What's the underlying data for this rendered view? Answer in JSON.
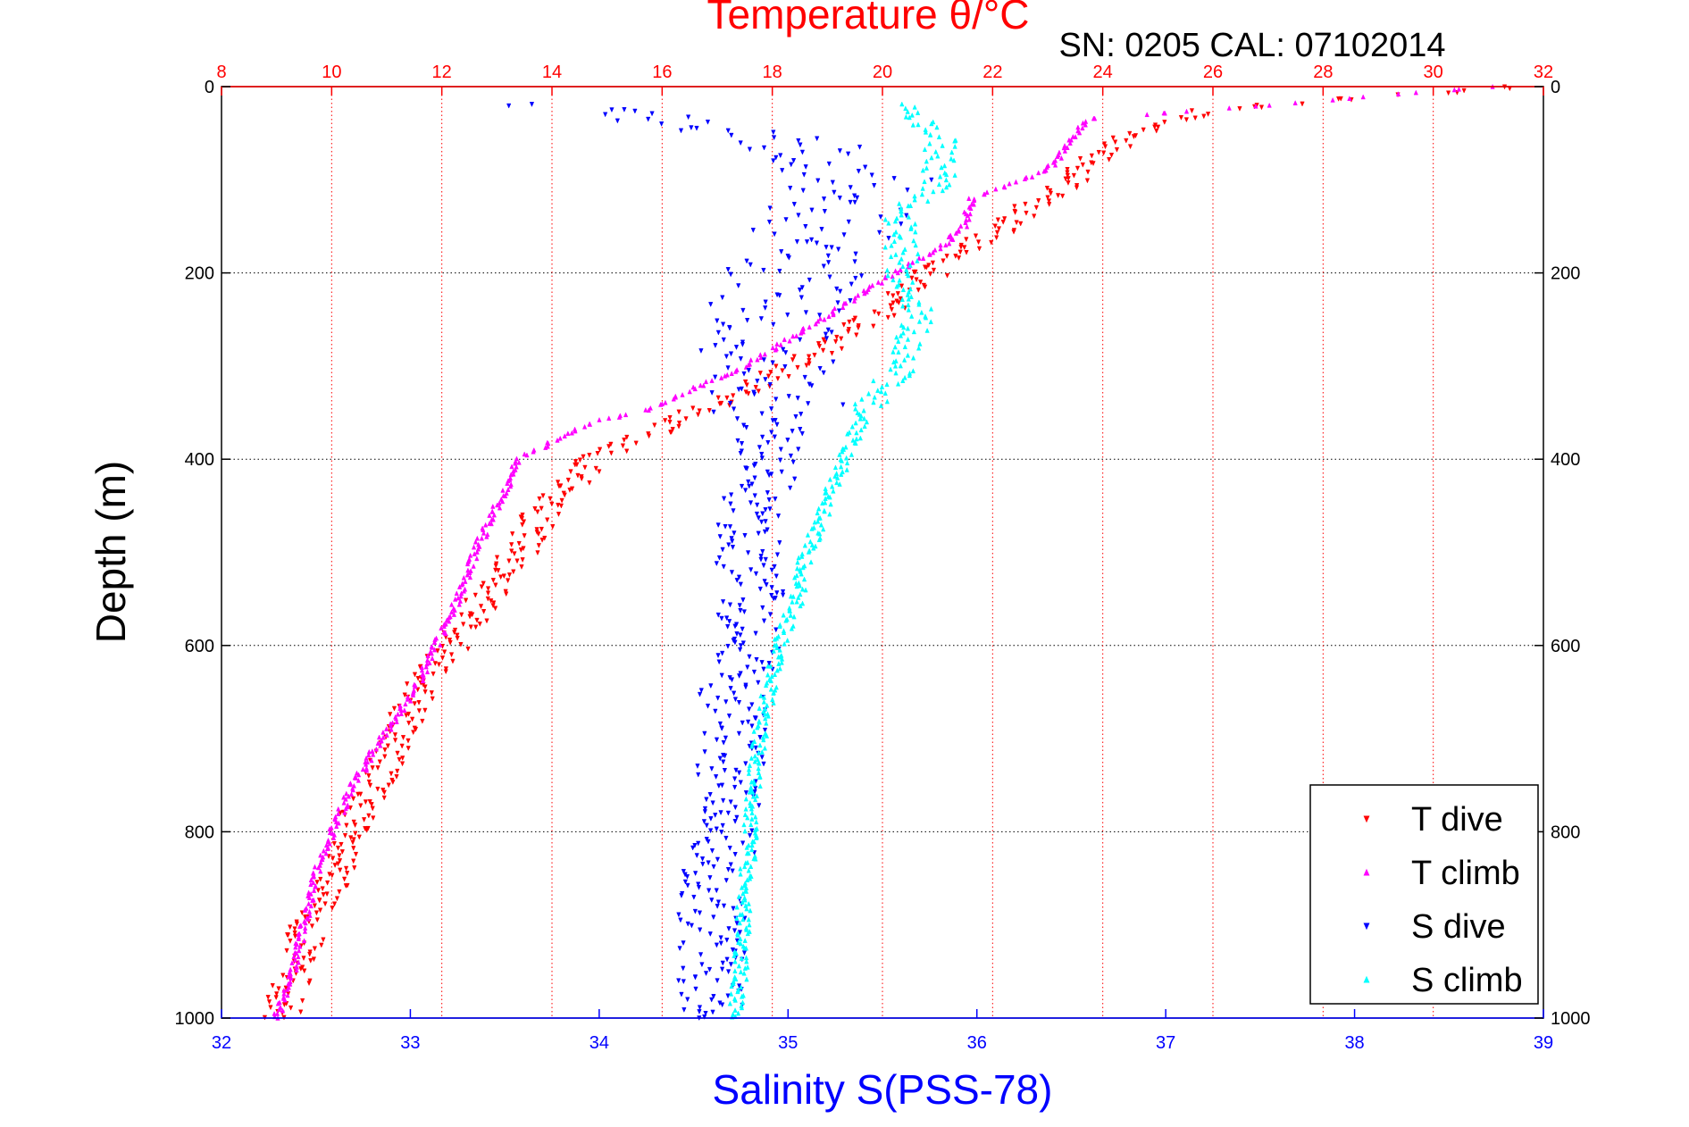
{
  "chart_data": {
    "type": "scatter",
    "title": "Temperature θ/°C",
    "annotation": "SN: 0205  CAL: 07102014",
    "ylabel": "Depth (m)",
    "xlabel_bottom": "Salinity S(PSS-78)",
    "ylim": [
      0,
      1000
    ],
    "y_inverted": true,
    "y_ticks": [
      0,
      200,
      400,
      600,
      800,
      1000
    ],
    "x_bottom_lim": [
      32,
      39
    ],
    "x_bottom_ticks": [
      32,
      33,
      34,
      35,
      36,
      37,
      38,
      39
    ],
    "x_top_lim": [
      8,
      32
    ],
    "x_top_ticks": [
      8,
      10,
      12,
      14,
      16,
      18,
      20,
      22,
      24,
      26,
      28,
      30,
      32
    ],
    "grid": true,
    "legend_position": "bottom-right",
    "colors": {
      "temperature_axis": "#ff0000",
      "salinity_axis": "#0000ff",
      "t_dive": "#ff0000",
      "t_climb": "#ff00ff",
      "s_dive": "#0000ff",
      "s_climb": "#00ffff",
      "grid": "#000000",
      "temp_grid": "#ff0000"
    },
    "series": [
      {
        "name": "T dive",
        "axis": "temperature",
        "marker": "triangle-down",
        "profile": [
          [
            0,
            31.5
          ],
          [
            25,
            26.0
          ],
          [
            50,
            24.6
          ],
          [
            100,
            23.4
          ],
          [
            150,
            22.2
          ],
          [
            200,
            20.9
          ],
          [
            250,
            19.8
          ],
          [
            300,
            18.4
          ],
          [
            350,
            16.6
          ],
          [
            400,
            14.8
          ],
          [
            450,
            13.9
          ],
          [
            500,
            13.4
          ],
          [
            550,
            12.8
          ],
          [
            600,
            12.2
          ],
          [
            650,
            11.6
          ],
          [
            700,
            11.2
          ],
          [
            750,
            10.8
          ],
          [
            800,
            10.3
          ],
          [
            850,
            10.0
          ],
          [
            900,
            9.6
          ],
          [
            950,
            9.3
          ],
          [
            1000,
            9.1
          ]
        ]
      },
      {
        "name": "T climb",
        "axis": "temperature",
        "marker": "triangle-up",
        "profile": [
          [
            0,
            31.0
          ],
          [
            20,
            27.0
          ],
          [
            35,
            23.7
          ],
          [
            60,
            23.4
          ],
          [
            90,
            23.0
          ],
          [
            120,
            21.6
          ],
          [
            150,
            21.5
          ],
          [
            175,
            21.0
          ],
          [
            200,
            20.2
          ],
          [
            250,
            18.9
          ],
          [
            300,
            17.5
          ],
          [
            350,
            15.6
          ],
          [
            360,
            14.7
          ],
          [
            400,
            13.4
          ],
          [
            450,
            13.0
          ],
          [
            500,
            12.6
          ],
          [
            550,
            12.3
          ],
          [
            600,
            11.9
          ],
          [
            650,
            11.5
          ],
          [
            700,
            10.9
          ],
          [
            750,
            10.4
          ],
          [
            800,
            10.0
          ],
          [
            850,
            9.7
          ],
          [
            900,
            9.5
          ],
          [
            950,
            9.3
          ],
          [
            1000,
            9.0
          ]
        ]
      },
      {
        "name": "S dive",
        "axis": "salinity",
        "marker": "triangle-down",
        "profile": [
          [
            20,
            33.8
          ],
          [
            50,
            34.9
          ],
          [
            100,
            35.4
          ],
          [
            150,
            35.2
          ],
          [
            200,
            35.0
          ],
          [
            250,
            34.9
          ],
          [
            300,
            34.9
          ],
          [
            350,
            34.9
          ],
          [
            400,
            34.9
          ],
          [
            450,
            34.8
          ],
          [
            500,
            34.8
          ],
          [
            550,
            34.8
          ],
          [
            600,
            34.8
          ],
          [
            650,
            34.7
          ],
          [
            700,
            34.7
          ],
          [
            750,
            34.7
          ],
          [
            800,
            34.7
          ],
          [
            850,
            34.6
          ],
          [
            900,
            34.6
          ],
          [
            950,
            34.6
          ],
          [
            1000,
            34.6
          ]
        ]
      },
      {
        "name": "S climb",
        "axis": "salinity",
        "marker": "triangle-up",
        "profile": [
          [
            20,
            35.6
          ],
          [
            50,
            35.8
          ],
          [
            100,
            35.8
          ],
          [
            140,
            35.6
          ],
          [
            180,
            35.6
          ],
          [
            200,
            35.6
          ],
          [
            250,
            35.7
          ],
          [
            300,
            35.6
          ],
          [
            350,
            35.4
          ],
          [
            400,
            35.3
          ],
          [
            450,
            35.2
          ],
          [
            500,
            35.1
          ],
          [
            550,
            35.05
          ],
          [
            600,
            34.95
          ],
          [
            650,
            34.9
          ],
          [
            700,
            34.85
          ],
          [
            750,
            34.82
          ],
          [
            800,
            34.8
          ],
          [
            850,
            34.78
          ],
          [
            900,
            34.76
          ],
          [
            950,
            34.75
          ],
          [
            1000,
            34.72
          ]
        ]
      }
    ]
  }
}
